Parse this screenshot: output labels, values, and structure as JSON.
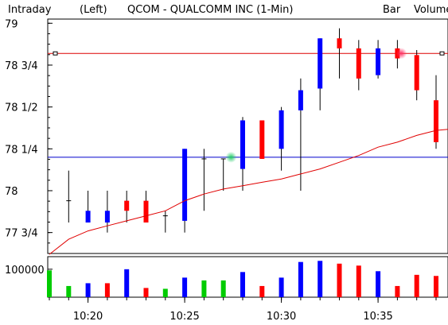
{
  "header": {
    "period": "Intraday",
    "axis_side": "(Left)",
    "title": "QCOM - QUALCOMM INC  (1-Min)",
    "chart_style": "Bar",
    "volume_label": "Volume"
  },
  "colors": {
    "up": "#0000ff",
    "down": "#ff0000",
    "volume_up": "#00cc00",
    "moving_average": "#e00000",
    "horizontal_red": "#dd0000",
    "horizontal_blue": "#0000cc",
    "volume_label": "#22dd22"
  },
  "chart_data": {
    "type": "candlestick",
    "price_axis": {
      "ylim": [
        77.625,
        79.025
      ],
      "ticks": [
        77.75,
        78.0,
        78.25,
        78.5,
        78.75,
        79.0
      ],
      "tick_labels": [
        "77 3/4",
        "78",
        "78 1/4",
        "78 1/2",
        "78 3/4",
        "79"
      ]
    },
    "time_axis": {
      "tick_labels": [
        "10:20",
        "10:25",
        "10:30",
        "10:35"
      ],
      "tick_minutes": [
        20,
        25,
        30,
        35
      ]
    },
    "candles": [
      {
        "minute": 19,
        "open": 77.94,
        "high": 78.12,
        "low": 77.81,
        "close": 77.94
      },
      {
        "minute": 20,
        "open": 77.81,
        "high": 78.0,
        "low": 77.81,
        "close": 77.88
      },
      {
        "minute": 21,
        "open": 77.81,
        "high": 78.0,
        "low": 77.75,
        "close": 77.88
      },
      {
        "minute": 22,
        "open": 77.94,
        "high": 78.0,
        "low": 77.81,
        "close": 77.88
      },
      {
        "minute": 23,
        "open": 77.94,
        "high": 78.0,
        "low": 77.81,
        "close": 77.81
      },
      {
        "minute": 24,
        "open": 77.85,
        "high": 77.88,
        "low": 77.75,
        "close": 77.85
      },
      {
        "minute": 25,
        "open": 77.82,
        "high": 78.25,
        "low": 77.75,
        "close": 78.25
      },
      {
        "minute": 26,
        "open": 78.19,
        "high": 78.25,
        "low": 77.88,
        "close": 78.19
      },
      {
        "minute": 27,
        "open": 78.19,
        "high": 78.19,
        "low": 78.0,
        "close": 78.19
      },
      {
        "minute": 28,
        "open": 78.13,
        "high": 78.44,
        "low": 78.0,
        "close": 78.42
      },
      {
        "minute": 29,
        "open": 78.42,
        "high": 78.42,
        "low": 78.19,
        "close": 78.19
      },
      {
        "minute": 30,
        "open": 78.25,
        "high": 78.5,
        "low": 78.12,
        "close": 78.48
      },
      {
        "minute": 31,
        "open": 78.48,
        "high": 78.67,
        "low": 78.0,
        "close": 78.6
      },
      {
        "minute": 32,
        "open": 78.61,
        "high": 78.91,
        "low": 78.48,
        "close": 78.91
      },
      {
        "minute": 33,
        "open": 78.91,
        "high": 78.97,
        "low": 78.67,
        "close": 78.85
      },
      {
        "minute": 34,
        "open": 78.85,
        "high": 78.9,
        "low": 78.6,
        "close": 78.67
      },
      {
        "minute": 35,
        "open": 78.69,
        "high": 78.9,
        "low": 78.67,
        "close": 78.85
      },
      {
        "minute": 36,
        "open": 78.85,
        "high": 78.9,
        "low": 78.73,
        "close": 78.79
      },
      {
        "minute": 37,
        "open": 78.81,
        "high": 78.84,
        "low": 78.54,
        "close": 78.6
      },
      {
        "minute": 38,
        "open": 78.54,
        "high": 78.69,
        "low": 78.25,
        "close": 78.29
      }
    ],
    "moving_average": [
      {
        "minute": 18,
        "value": 77.62
      },
      {
        "minute": 19,
        "value": 77.71
      },
      {
        "minute": 20,
        "value": 77.76
      },
      {
        "minute": 21,
        "value": 77.79
      },
      {
        "minute": 22,
        "value": 77.82
      },
      {
        "minute": 23,
        "value": 77.85
      },
      {
        "minute": 24,
        "value": 77.88
      },
      {
        "minute": 25,
        "value": 77.94
      },
      {
        "minute": 26,
        "value": 77.98
      },
      {
        "minute": 27,
        "value": 78.01
      },
      {
        "minute": 28,
        "value": 78.03
      },
      {
        "minute": 29,
        "value": 78.05
      },
      {
        "minute": 30,
        "value": 78.07
      },
      {
        "minute": 31,
        "value": 78.1
      },
      {
        "minute": 32,
        "value": 78.13
      },
      {
        "minute": 33,
        "value": 78.17
      },
      {
        "minute": 34,
        "value": 78.21
      },
      {
        "minute": 35,
        "value": 78.26
      },
      {
        "minute": 36,
        "value": 78.29
      },
      {
        "minute": 37,
        "value": 78.33
      },
      {
        "minute": 38,
        "value": 78.36
      },
      {
        "minute": 39,
        "value": 78.37
      }
    ],
    "horizontal_lines": [
      {
        "name": "red-level",
        "value": 78.82
      },
      {
        "name": "blue-level",
        "value": 78.2
      }
    ],
    "volume_axis": {
      "ylim": [
        0,
        145000
      ],
      "tick_value": 100000,
      "tick_label": "100000"
    },
    "volume": [
      {
        "minute": 18,
        "value": 96000,
        "color": "green"
      },
      {
        "minute": 19,
        "value": 40000,
        "color": "green"
      },
      {
        "minute": 20,
        "value": 50000,
        "color": "blue"
      },
      {
        "minute": 21,
        "value": 50000,
        "color": "red"
      },
      {
        "minute": 22,
        "value": 100000,
        "color": "blue"
      },
      {
        "minute": 23,
        "value": 33000,
        "color": "red"
      },
      {
        "minute": 24,
        "value": 30000,
        "color": "green"
      },
      {
        "minute": 25,
        "value": 70000,
        "color": "blue"
      },
      {
        "minute": 26,
        "value": 60000,
        "color": "green"
      },
      {
        "minute": 27,
        "value": 60000,
        "color": "green"
      },
      {
        "minute": 28,
        "value": 90000,
        "color": "blue"
      },
      {
        "minute": 29,
        "value": 40000,
        "color": "red"
      },
      {
        "minute": 30,
        "value": 70000,
        "color": "blue"
      },
      {
        "minute": 31,
        "value": 126000,
        "color": "blue"
      },
      {
        "minute": 32,
        "value": 130000,
        "color": "blue"
      },
      {
        "minute": 33,
        "value": 120000,
        "color": "red"
      },
      {
        "minute": 34,
        "value": 113000,
        "color": "red"
      },
      {
        "minute": 35,
        "value": 93000,
        "color": "blue"
      },
      {
        "minute": 36,
        "value": 40000,
        "color": "red"
      },
      {
        "minute": 37,
        "value": 80000,
        "color": "red"
      },
      {
        "minute": 38,
        "value": 76000,
        "color": "red"
      }
    ]
  }
}
